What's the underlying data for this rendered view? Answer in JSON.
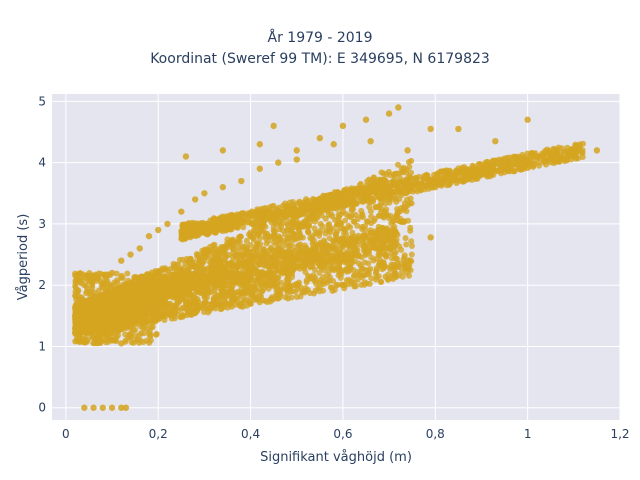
{
  "chart_data": {
    "type": "scatter",
    "title_line1": "År 1979 - 2019",
    "title_line2": "Koordinat (Sweref 99 TM): E 349695, N 6179823",
    "xlabel": "Signifikant våghöjd (m)",
    "ylabel": "Vågperiod (s)",
    "xlim": [
      -0.03,
      1.2
    ],
    "ylim": [
      -0.2,
      5.12
    ],
    "xticks": [
      0,
      0.2,
      0.4,
      0.6,
      0.8,
      1,
      1.2
    ],
    "xtick_labels": [
      "0",
      "0,2",
      "0,4",
      "0,6",
      "0,8",
      "1",
      "1,2"
    ],
    "yticks": [
      0,
      1,
      2,
      3,
      4,
      5
    ],
    "ytick_labels": [
      "0",
      "1",
      "2",
      "3",
      "4",
      "5"
    ],
    "grid": true,
    "marker_color": "#d4a520",
    "background_color": "#e5e5f0",
    "series": [
      {
        "points": [
          [
            0.04,
            0.0
          ],
          [
            0.06,
            0.0
          ],
          [
            0.08,
            0.0
          ],
          [
            0.1,
            0.0
          ],
          [
            0.12,
            0.0
          ],
          [
            0.13,
            0.0
          ],
          [
            0.02,
            1.5
          ],
          [
            0.03,
            1.3
          ],
          [
            0.05,
            1.6
          ],
          [
            0.07,
            1.4
          ],
          [
            0.08,
            1.2
          ],
          [
            0.1,
            1.1
          ],
          [
            0.12,
            1.05
          ],
          [
            0.14,
            1.15
          ],
          [
            0.09,
            1.9
          ],
          [
            0.1,
            2.2
          ],
          [
            0.12,
            2.4
          ],
          [
            0.14,
            2.5
          ],
          [
            0.16,
            2.6
          ],
          [
            0.18,
            2.8
          ],
          [
            0.2,
            2.9
          ],
          [
            0.22,
            3.0
          ],
          [
            0.25,
            3.2
          ],
          [
            0.28,
            3.4
          ],
          [
            0.3,
            3.5
          ],
          [
            0.34,
            3.6
          ],
          [
            0.38,
            3.7
          ],
          [
            0.42,
            3.9
          ],
          [
            0.46,
            4.0
          ],
          [
            0.5,
            4.2
          ],
          [
            0.55,
            4.4
          ],
          [
            0.6,
            4.6
          ],
          [
            0.65,
            4.7
          ],
          [
            0.7,
            4.8
          ],
          [
            0.72,
            4.9
          ],
          [
            0.15,
            1.6
          ],
          [
            0.2,
            1.7
          ],
          [
            0.25,
            1.8
          ],
          [
            0.3,
            1.9
          ],
          [
            0.35,
            2.0
          ],
          [
            0.4,
            2.1
          ],
          [
            0.45,
            2.2
          ],
          [
            0.5,
            2.3
          ],
          [
            0.55,
            2.4
          ],
          [
            0.6,
            2.5
          ],
          [
            0.65,
            2.55
          ],
          [
            0.7,
            2.62
          ],
          [
            0.2,
            2.2
          ],
          [
            0.3,
            2.5
          ],
          [
            0.4,
            2.8
          ],
          [
            0.5,
            3.0
          ],
          [
            0.6,
            3.2
          ],
          [
            0.7,
            3.4
          ],
          [
            0.8,
            3.6
          ],
          [
            0.9,
            3.8
          ],
          [
            0.95,
            3.9
          ],
          [
            1.0,
            4.0
          ],
          [
            1.05,
            4.08
          ],
          [
            1.1,
            4.15
          ],
          [
            1.15,
            4.2
          ],
          [
            0.26,
            4.1
          ],
          [
            0.34,
            4.2
          ],
          [
            0.42,
            4.3
          ],
          [
            0.5,
            4.05
          ],
          [
            0.58,
            4.3
          ],
          [
            0.66,
            4.35
          ],
          [
            0.74,
            4.2
          ],
          [
            0.79,
            4.55
          ],
          [
            0.85,
            4.55
          ],
          [
            0.93,
            4.35
          ],
          [
            1.0,
            4.7
          ],
          [
            0.79,
            2.78
          ],
          [
            0.68,
            2.78
          ],
          [
            0.45,
            4.6
          ]
        ]
      }
    ]
  }
}
